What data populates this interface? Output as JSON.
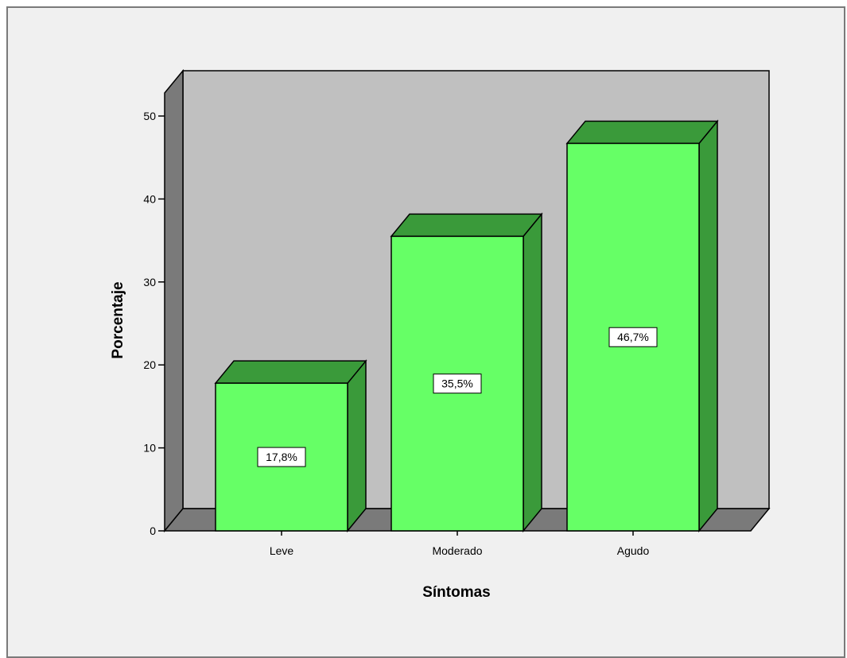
{
  "chart_data": {
    "type": "bar",
    "xlabel": "Síntomas",
    "ylabel": "Porcentaje",
    "categories": [
      "Leve",
      "Moderado",
      "Agudo"
    ],
    "values": [
      17.8,
      35.5,
      46.7
    ],
    "data_labels": [
      "17,8%",
      "35,5%",
      "46,7%"
    ],
    "ylim": [
      0,
      50
    ],
    "yticks": [
      0,
      10,
      20,
      30,
      40,
      50
    ],
    "grid": false,
    "legend": "none",
    "style": "3d",
    "colors": {
      "bar_front": "#66ff66",
      "bar_top_side": "#3a9a3a",
      "back_wall": "#c0c0c0",
      "side_wall": "#7a7a7a",
      "floor": "#7a7a7a",
      "background": "#f0f0f0"
    }
  }
}
